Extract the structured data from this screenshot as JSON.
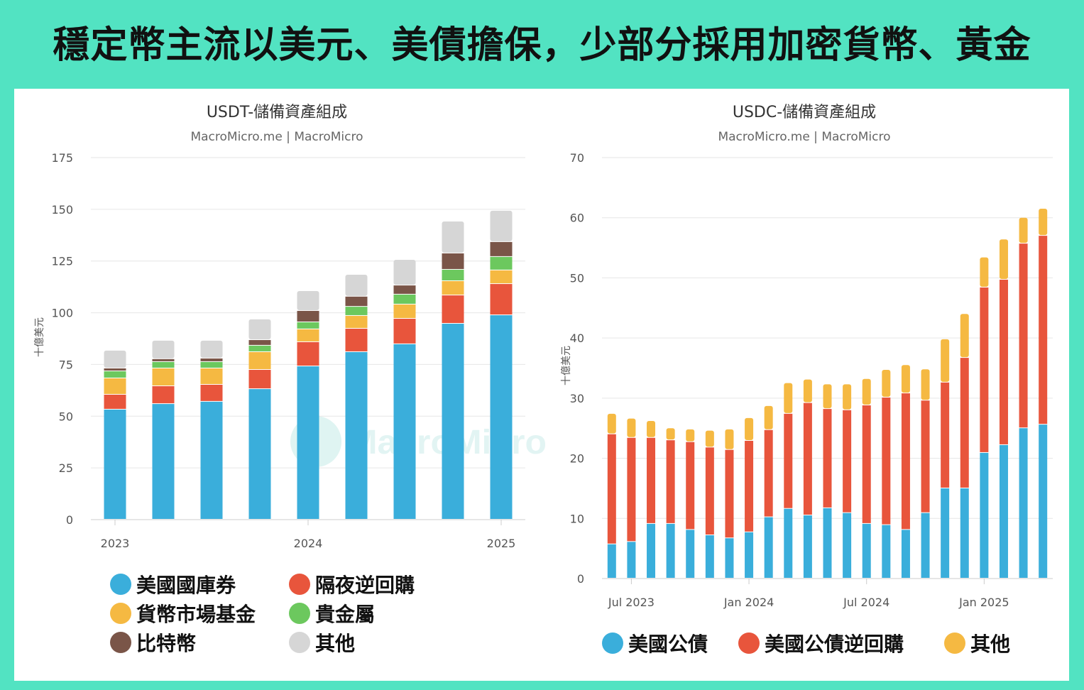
{
  "title": "穩定幣主流以美元、美債擔保，少部分採用加密貨幣、黃金",
  "watermark": "MacroMicro",
  "colors": {
    "frame": "#52e3c2",
    "blue": "#3aaedb",
    "red": "#e8553c",
    "yellow": "#f5b942",
    "green": "#6cc85e",
    "brown": "#7a5548",
    "gray": "#d6d6d6"
  },
  "chart_data": [
    {
      "type": "bar",
      "stacked": true,
      "title": "USDT-儲備資產組成",
      "subtitle": "MacroMicro.me | MacroMicro",
      "ylabel": "十億美元",
      "ylim": [
        0,
        175
      ],
      "yticks": [
        0,
        25,
        50,
        75,
        100,
        125,
        150,
        175
      ],
      "categories": [
        "2023",
        "",
        "",
        "",
        "2024",
        "",
        "",
        "",
        "2025"
      ],
      "grid": true,
      "legend_placement": "bottom",
      "series": [
        {
          "name": "美國國庫券",
          "color": "#3aaedb",
          "values": [
            53.2,
            55.9,
            57.0,
            63.1,
            74.1,
            81.0,
            84.8,
            94.7,
            98.8
          ]
        },
        {
          "name": "隔夜逆回購",
          "color": "#e8553c",
          "values": [
            7.2,
            8.6,
            8.2,
            9.3,
            11.7,
            11.3,
            12.3,
            13.7,
            15.1
          ]
        },
        {
          "name": "貨幣市場基金",
          "color": "#f5b942",
          "values": [
            7.9,
            8.6,
            7.9,
            8.6,
            6.2,
            6.2,
            6.9,
            6.9,
            6.6
          ]
        },
        {
          "name": "貴金屬",
          "color": "#6cc85e",
          "values": [
            3.4,
            3.1,
            3.1,
            3.1,
            3.4,
            4.4,
            4.8,
            5.5,
            6.5
          ]
        },
        {
          "name": "比特幣",
          "color": "#7a5548",
          "values": [
            1.4,
            1.4,
            1.7,
            2.7,
            5.5,
            4.9,
            4.4,
            7.9,
            7.2
          ]
        },
        {
          "name": "其他",
          "color": "#d6d6d6",
          "values": [
            8.6,
            8.9,
            8.6,
            10.0,
            9.6,
            10.6,
            12.4,
            15.4,
            15.1
          ]
        }
      ]
    },
    {
      "type": "bar",
      "stacked": true,
      "title": "USDC-儲備資產組成",
      "subtitle": "MacroMicro.me | MacroMicro",
      "ylabel": "十億美元",
      "ylim": [
        0,
        70
      ],
      "yticks": [
        0,
        10,
        20,
        30,
        40,
        50,
        60,
        70
      ],
      "categories": [
        "",
        "Jul 2023",
        "",
        "",
        "",
        "",
        "",
        "Jan 2024",
        "",
        "",
        "",
        "",
        "",
        "Jul 2024",
        "",
        "",
        "",
        "",
        "",
        "Jan 2025",
        "",
        "",
        ""
      ],
      "grid": true,
      "legend_placement": "bottom",
      "series": [
        {
          "name": "美國公債",
          "color": "#3aaedb",
          "values": [
            5.7,
            6.1,
            9.1,
            9.1,
            8.1,
            7.2,
            6.7,
            7.7,
            10.2,
            11.6,
            10.5,
            11.7,
            10.9,
            9.1,
            8.9,
            8.1,
            10.9,
            15.0,
            15.0,
            20.9,
            22.2,
            25.0,
            25.6
          ]
        },
        {
          "name": "美國公債逆回購",
          "color": "#e8553c",
          "values": [
            18.3,
            17.3,
            14.3,
            13.9,
            14.6,
            14.6,
            14.7,
            15.2,
            14.5,
            15.8,
            18.7,
            16.5,
            17.1,
            19.7,
            21.2,
            22.7,
            18.7,
            17.6,
            21.7,
            27.5,
            27.5,
            30.7,
            31.4
          ]
        },
        {
          "name": "其他",
          "color": "#f5b942",
          "values": [
            3.4,
            3.2,
            2.8,
            2.0,
            2.1,
            2.8,
            3.4,
            3.8,
            4.0,
            5.1,
            3.9,
            4.1,
            4.3,
            4.4,
            4.6,
            4.7,
            5.2,
            7.2,
            7.3,
            5.0,
            6.7,
            4.3,
            4.5
          ]
        }
      ]
    }
  ]
}
